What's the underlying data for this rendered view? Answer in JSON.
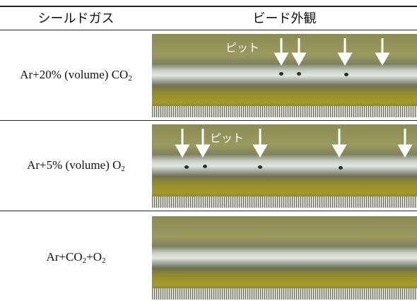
{
  "header": [
    "シールドガス",
    "ビード外観"
  ],
  "rows": [
    {
      "gas": [
        {
          "text": "Ar+20% (volume) CO"
        },
        {
          "sub": "2"
        }
      ],
      "pit_label": "ピット"
    },
    {
      "gas": [
        {
          "text": "Ar+5% (volume) O"
        },
        {
          "sub": "2"
        }
      ],
      "pit_label": "ピット"
    },
    {
      "gas": [
        {
          "text": "Ar+CO"
        },
        {
          "sub": "2"
        },
        {
          "text": "+O"
        },
        {
          "sub": "2"
        }
      ]
    }
  ]
}
